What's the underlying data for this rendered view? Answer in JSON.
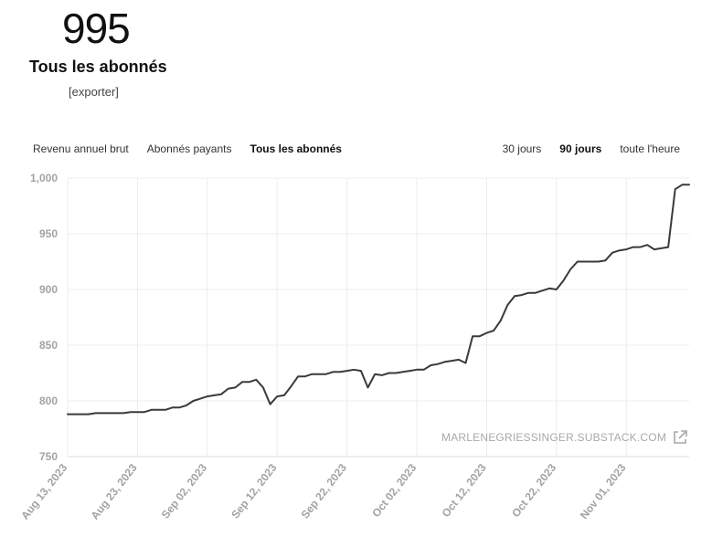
{
  "summary": {
    "count": "995",
    "title": "Tous les abonnés",
    "export_label": "[exporter]"
  },
  "metric_tabs": [
    {
      "label": "Revenu annuel brut",
      "active": false
    },
    {
      "label": "Abonnés payants",
      "active": false
    },
    {
      "label": "Tous les abonnés",
      "active": true
    }
  ],
  "range_tabs": [
    {
      "label": "30 jours",
      "active": false
    },
    {
      "label": "90 jours",
      "active": true
    },
    {
      "label": "toute l'heure",
      "active": false
    }
  ],
  "watermark": {
    "text": "MARLENEGRIESSINGER.SUBSTACK.COM",
    "icon": "external-link-icon"
  },
  "colors": {
    "line": "#3a3a3a",
    "grid": "#ececec",
    "axis_text": "#a3a3a3"
  },
  "chart_data": {
    "type": "line",
    "ylim": [
      750,
      1000
    ],
    "yticks": [
      750,
      800,
      850,
      900,
      950,
      1000
    ],
    "ytick_labels": [
      "750",
      "800",
      "850",
      "900",
      "950",
      "1,000"
    ],
    "xlim": [
      "2023-08-13",
      "2023-11-10"
    ],
    "xticks": [
      "2023-08-13",
      "2023-08-23",
      "2023-09-02",
      "2023-09-12",
      "2023-09-22",
      "2023-10-02",
      "2023-10-12",
      "2023-10-22",
      "2023-11-01"
    ],
    "xtick_labels": [
      "Aug 13, 2023",
      "Aug 23, 2023",
      "Sep 02, 2023",
      "Sep 12, 2023",
      "Sep 22, 2023",
      "Oct 02, 2023",
      "Oct 12, 2023",
      "Oct 22, 2023",
      "Nov 01, 2023"
    ],
    "grid": true,
    "series": [
      {
        "x": [
          "2023-08-13",
          "2023-08-14",
          "2023-08-15",
          "2023-08-16",
          "2023-08-17",
          "2023-08-18",
          "2023-08-19",
          "2023-08-20",
          "2023-08-21",
          "2023-08-22",
          "2023-08-23",
          "2023-08-24",
          "2023-08-25",
          "2023-08-26",
          "2023-08-27",
          "2023-08-28",
          "2023-08-29",
          "2023-08-30",
          "2023-08-31",
          "2023-09-01",
          "2023-09-02",
          "2023-09-03",
          "2023-09-04",
          "2023-09-05",
          "2023-09-06",
          "2023-09-07",
          "2023-09-08",
          "2023-09-09",
          "2023-09-10",
          "2023-09-11",
          "2023-09-12",
          "2023-09-13",
          "2023-09-14",
          "2023-09-15",
          "2023-09-16",
          "2023-09-17",
          "2023-09-18",
          "2023-09-19",
          "2023-09-20",
          "2023-09-21",
          "2023-09-22",
          "2023-09-23",
          "2023-09-24",
          "2023-09-25",
          "2023-09-26",
          "2023-09-27",
          "2023-09-28",
          "2023-09-29",
          "2023-09-30",
          "2023-10-01",
          "2023-10-02",
          "2023-10-03",
          "2023-10-04",
          "2023-10-05",
          "2023-10-06",
          "2023-10-07",
          "2023-10-08",
          "2023-10-09",
          "2023-10-10",
          "2023-10-11",
          "2023-10-12",
          "2023-10-13",
          "2023-10-14",
          "2023-10-15",
          "2023-10-16",
          "2023-10-17",
          "2023-10-18",
          "2023-10-19",
          "2023-10-20",
          "2023-10-21",
          "2023-10-22",
          "2023-10-23",
          "2023-10-24",
          "2023-10-25",
          "2023-10-26",
          "2023-10-27",
          "2023-10-28",
          "2023-10-29",
          "2023-10-30",
          "2023-10-31",
          "2023-11-01",
          "2023-11-02",
          "2023-11-03",
          "2023-11-04",
          "2023-11-05",
          "2023-11-06",
          "2023-11-07",
          "2023-11-08",
          "2023-11-09",
          "2023-11-10"
        ],
        "y": [
          788,
          788,
          788,
          788,
          789,
          789,
          789,
          789,
          789,
          790,
          790,
          790,
          792,
          792,
          792,
          794,
          794,
          796,
          800,
          802,
          804,
          805,
          806,
          811,
          812,
          817,
          817,
          819,
          812,
          797,
          804,
          805,
          813,
          822,
          822,
          824,
          824,
          824,
          826,
          826,
          827,
          828,
          827,
          812,
          824,
          823,
          825,
          825,
          826,
          827,
          828,
          828,
          832,
          833,
          835,
          836,
          837,
          834,
          858,
          858,
          861,
          863,
          872,
          886,
          894,
          895,
          897,
          897,
          899,
          901,
          900,
          908,
          918,
          925,
          925,
          925,
          925,
          926,
          933,
          935,
          936,
          938,
          938,
          940,
          936,
          937,
          938,
          990,
          994,
          994
        ]
      }
    ]
  }
}
